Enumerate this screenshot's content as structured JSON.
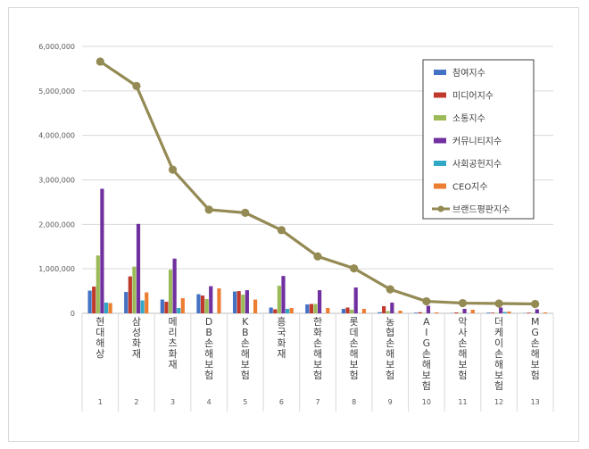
{
  "chart_data": {
    "type": "bar",
    "title": "",
    "xlabel": "",
    "ylabel": "",
    "ylim": [
      0,
      6000000
    ],
    "y_ticks": [
      "0",
      "1,000,000",
      "2,000,000",
      "3,000,000",
      "4,000,000",
      "5,000,000",
      "6,000,000"
    ],
    "grid": true,
    "legend_position": "top-right",
    "categories": [
      "현대해상",
      "삼성화재",
      "메리츠화재",
      "DB손해보험",
      "KB손해보험",
      "흥국화재",
      "한화손해보험",
      "롯데손해보험",
      "농협손해보험",
      "AIG손해보험",
      "악사손해보험",
      "더케이손해보험",
      "MG손해보험"
    ],
    "ranks": [
      "1",
      "2",
      "3",
      "4",
      "5",
      "6",
      "7",
      "8",
      "9",
      "10",
      "11",
      "12",
      "13"
    ],
    "series": [
      {
        "name": "참여지수",
        "type": "bar",
        "color": "#4472c4",
        "values": [
          510000,
          480000,
          310000,
          430000,
          490000,
          130000,
          200000,
          100000,
          25000,
          15000,
          5000,
          15000,
          5000
        ]
      },
      {
        "name": "미디어지수",
        "type": "bar",
        "color": "#c0392b",
        "values": [
          600000,
          830000,
          260000,
          400000,
          500000,
          90000,
          210000,
          130000,
          160000,
          25000,
          20000,
          15000,
          15000
        ]
      },
      {
        "name": "소통지수",
        "type": "bar",
        "color": "#9bbb59",
        "values": [
          1300000,
          1050000,
          980000,
          320000,
          420000,
          620000,
          210000,
          80000,
          50000,
          10000,
          10000,
          10000,
          10000
        ]
      },
      {
        "name": "커뮤니티지수",
        "type": "bar",
        "color": "#7030a0",
        "values": [
          2800000,
          2010000,
          1230000,
          610000,
          520000,
          840000,
          520000,
          580000,
          240000,
          170000,
          100000,
          130000,
          90000
        ]
      },
      {
        "name": "사회공헌지수",
        "type": "bar",
        "color": "#31a9c6",
        "values": [
          240000,
          290000,
          120000,
          0,
          0,
          100000,
          0,
          0,
          0,
          0,
          0,
          30000,
          0
        ]
      },
      {
        "name": "CEO지수",
        "type": "bar",
        "color": "#ed7d31",
        "values": [
          230000,
          470000,
          340000,
          560000,
          310000,
          120000,
          120000,
          100000,
          60000,
          20000,
          80000,
          40000,
          20000
        ]
      },
      {
        "name": "브랜드평판지수",
        "type": "line",
        "color": "#948a54",
        "values": [
          5660000,
          5110000,
          3230000,
          2330000,
          2260000,
          1870000,
          1280000,
          1010000,
          540000,
          270000,
          230000,
          220000,
          210000
        ]
      }
    ]
  }
}
